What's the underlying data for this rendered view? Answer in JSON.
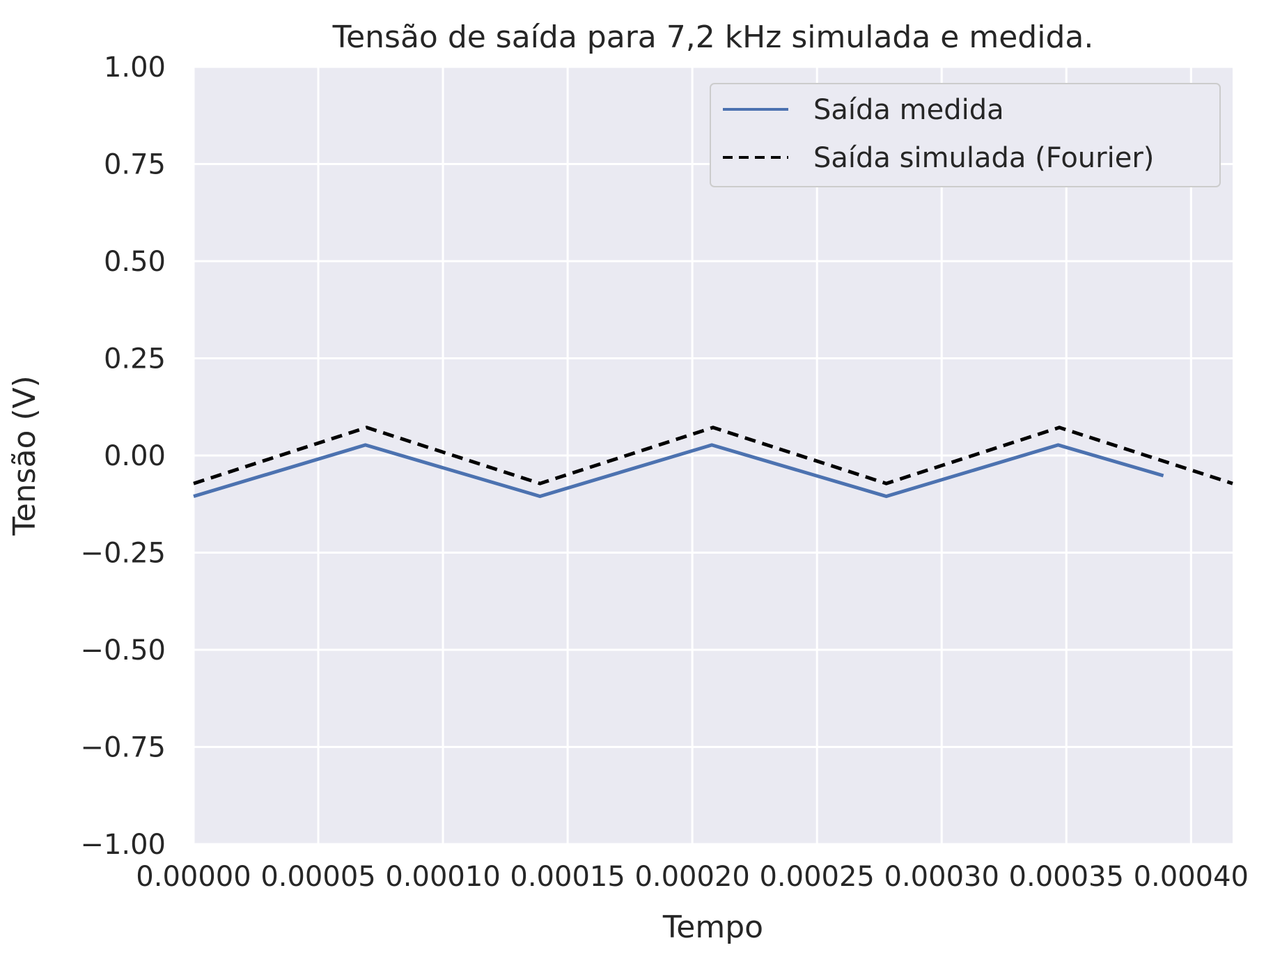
{
  "chart_data": {
    "type": "line",
    "title": "Tensão de saída para 7,2 kHz simulada e medida.",
    "xlabel": "Tempo",
    "ylabel": "Tensão (V)",
    "xlim": [
      0.0,
      0.00041667
    ],
    "ylim": [
      -1.0,
      1.0
    ],
    "grid": true,
    "legend_position": "upper-right",
    "x_ticks": [
      0.0,
      5e-05,
      0.0001,
      0.00015,
      0.0002,
      0.00025,
      0.0003,
      0.00035,
      0.0004
    ],
    "x_tick_labels": [
      "0.00000",
      "0.00005",
      "0.00010",
      "0.00015",
      "0.00020",
      "0.00025",
      "0.00030",
      "0.00035",
      "0.00040"
    ],
    "y_ticks": [
      1.0,
      0.75,
      0.5,
      0.25,
      0.0,
      -0.25,
      -0.5,
      -0.75,
      -1.0
    ],
    "y_tick_labels": [
      "1.00",
      "0.75",
      "0.50",
      "0.25",
      "0.00",
      "−0.25",
      "−0.50",
      "−0.75",
      "−1.00"
    ],
    "series": [
      {
        "name": "Saída medida",
        "color": "#4c72b0",
        "style": "solid",
        "x": [
          0.0,
          6.89e-05,
          0.0001389,
          0.0002078,
          0.0002778,
          0.0003467,
          0.0003889
        ],
        "y": [
          -0.105,
          0.027,
          -0.105,
          0.027,
          -0.105,
          0.027,
          -0.052
        ]
      },
      {
        "name": "Saída simulada (Fourier)",
        "color": "#000000",
        "style": "dashed",
        "x": [
          0.0,
          6.94e-05,
          0.0001389,
          0.0002083,
          0.0002778,
          0.0003472,
          0.00041667
        ],
        "y": [
          -0.072,
          0.072,
          -0.072,
          0.072,
          -0.072,
          0.072,
          -0.072
        ]
      }
    ]
  }
}
